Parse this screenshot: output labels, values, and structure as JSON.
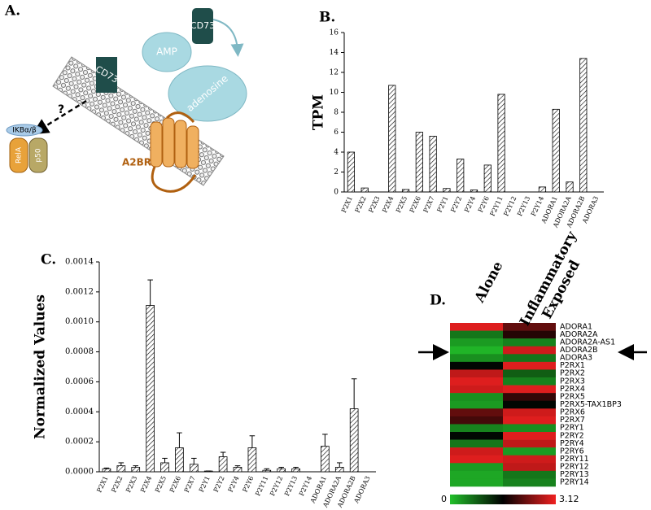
{
  "diagram": {
    "panel_label": "A.",
    "cd73_membrane": "CD73",
    "amp": "AMP",
    "cd73_top": "CD73",
    "adenosine": "adenosine",
    "receptor": "A2BR",
    "question": "?",
    "ikb": "IKBα/β",
    "rela": "RelA",
    "p50": "p50"
  },
  "chart_data": [
    {
      "type": "bar",
      "panel_label": "B.",
      "y_label": "TPM",
      "categories": [
        "P2X1",
        "P2X2",
        "P2X3",
        "P2X4",
        "P2X5",
        "P2X6",
        "P2X7",
        "P2Y1",
        "P2Y2",
        "P2Y4",
        "P2Y6",
        "P2Y11",
        "P2Y12",
        "P2Y13",
        "P2Y14",
        "ADORA1",
        "ADORA2A",
        "ADORA2B",
        "ADORA3"
      ],
      "values": [
        4.0,
        0.4,
        0,
        10.7,
        0.25,
        6.0,
        5.6,
        0.35,
        3.3,
        0.2,
        2.7,
        9.8,
        0,
        0,
        0.5,
        8.3,
        1.0,
        13.4,
        0
      ],
      "ylim": [
        0,
        16
      ],
      "yticks": [
        0,
        2,
        4,
        6,
        8,
        10,
        12,
        14,
        16
      ]
    },
    {
      "type": "bar",
      "panel_label": "C.",
      "y_label": "Normalized Values",
      "categories": [
        "P2X1",
        "P2X2",
        "P2X3",
        "P2X4",
        "P2X5",
        "P2X6",
        "P2X7",
        "P2Y1",
        "P2Y2",
        "P2Y4",
        "P2Y6",
        "P2Y11",
        "P2Y12",
        "P2Y13",
        "P2Y14",
        "ADORA1",
        "ADORA2A",
        "ADORA2B",
        "ADORA3"
      ],
      "values": [
        2e-05,
        4e-05,
        3e-05,
        0.00111,
        6e-05,
        0.00016,
        5e-05,
        5e-06,
        0.0001,
        3e-05,
        0.00016,
        1e-05,
        2e-05,
        2e-05,
        0,
        0.00017,
        3e-05,
        0.00042,
        0
      ],
      "errors": [
        5e-06,
        2e-05,
        1e-05,
        0.00017,
        3e-05,
        0.0001,
        4e-05,
        0,
        3e-05,
        1e-05,
        8e-05,
        1e-05,
        1e-05,
        1e-05,
        0,
        8e-05,
        3e-05,
        0.0002,
        0
      ],
      "ylim": [
        0,
        0.0014
      ],
      "yticks": [
        {
          "value": 0,
          "label": "0.0000"
        },
        0.0002,
        0.0004,
        0.0006,
        0.0008,
        {
          "value": 0.001,
          "label": "0.0010"
        },
        0.0012,
        0.0014
      ]
    },
    {
      "type": "heatmap",
      "panel_label": "D.",
      "columns": [
        "Alone",
        "Inflammatory Exposed"
      ],
      "rows": [
        "ADORA1",
        "ADORA2A",
        "ADORA2A-AS1",
        "ADORA2B",
        "ADORA3",
        "P2RX1",
        "P2RX2",
        "P2RX3",
        "P2RX4",
        "P2RX5",
        "P2RX5-TAX1BP3",
        "P2RX6",
        "P2RX7",
        "P2RY1",
        "P2RY2",
        "P2RY4",
        "P2RY6",
        "P2RY11",
        "P2RY12",
        "P2RY13",
        "P2RY14"
      ],
      "values": [
        [
          3.0,
          2.2
        ],
        [
          0.6,
          1.8
        ],
        [
          0.3,
          0.5
        ],
        [
          0.1,
          2.9
        ],
        [
          0.4,
          0.6
        ],
        [
          1.5,
          3.0
        ],
        [
          2.8,
          0.8
        ],
        [
          3.0,
          0.5
        ],
        [
          2.9,
          3.0
        ],
        [
          0.4,
          1.9
        ],
        [
          0.3,
          1.5
        ],
        [
          2.2,
          2.9
        ],
        [
          2.0,
          3.0
        ],
        [
          0.5,
          0.4
        ],
        [
          1.5,
          3.0
        ],
        [
          0.6,
          2.8
        ],
        [
          2.9,
          0.3
        ],
        [
          3.0,
          2.9
        ],
        [
          0.3,
          2.8
        ],
        [
          0.2,
          0.6
        ],
        [
          0.2,
          0.5
        ]
      ],
      "zlim": [
        0,
        3.12
      ],
      "colorbar_ticks": [
        0,
        3.12
      ],
      "colormap": [
        "#22c02a",
        "#000000",
        "#f02020"
      ]
    }
  ]
}
